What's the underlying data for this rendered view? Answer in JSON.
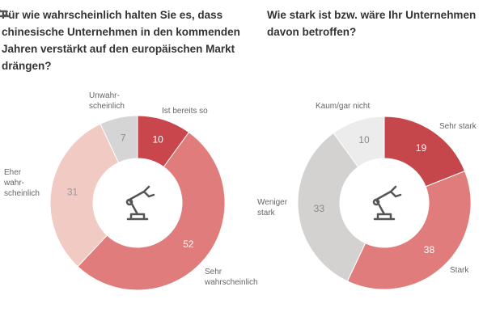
{
  "chart_data": [
    {
      "type": "pie",
      "donut": true,
      "title": "Für wie wahrscheinlich halten Sie es, dass chinesische Unternehmen in den kommenden Jahren verstärkt auf den europäischen Markt drängen?",
      "categories": [
        "Ist bereits so",
        "Sehr\nwahrscheinlich",
        "Eher\nwahr-\nscheinlich",
        "Unwahr-\nscheinlich"
      ],
      "values": [
        10,
        52,
        31,
        7
      ],
      "colors": [
        "#c9474c",
        "#e07c7c",
        "#f1cac3",
        "#d5d5d5"
      ]
    },
    {
      "type": "pie",
      "donut": true,
      "title": "Wie stark ist bzw. wäre Ihr Unternehmen davon betroffen?",
      "categories": [
        "Sehr stark",
        "Stark",
        "Weniger\nstark",
        "Kaum/gar nicht"
      ],
      "values": [
        19,
        38,
        33,
        10
      ],
      "colors": [
        "#c5474b",
        "#e07c7c",
        "#d4d1d1",
        "#ececec"
      ]
    }
  ]
}
